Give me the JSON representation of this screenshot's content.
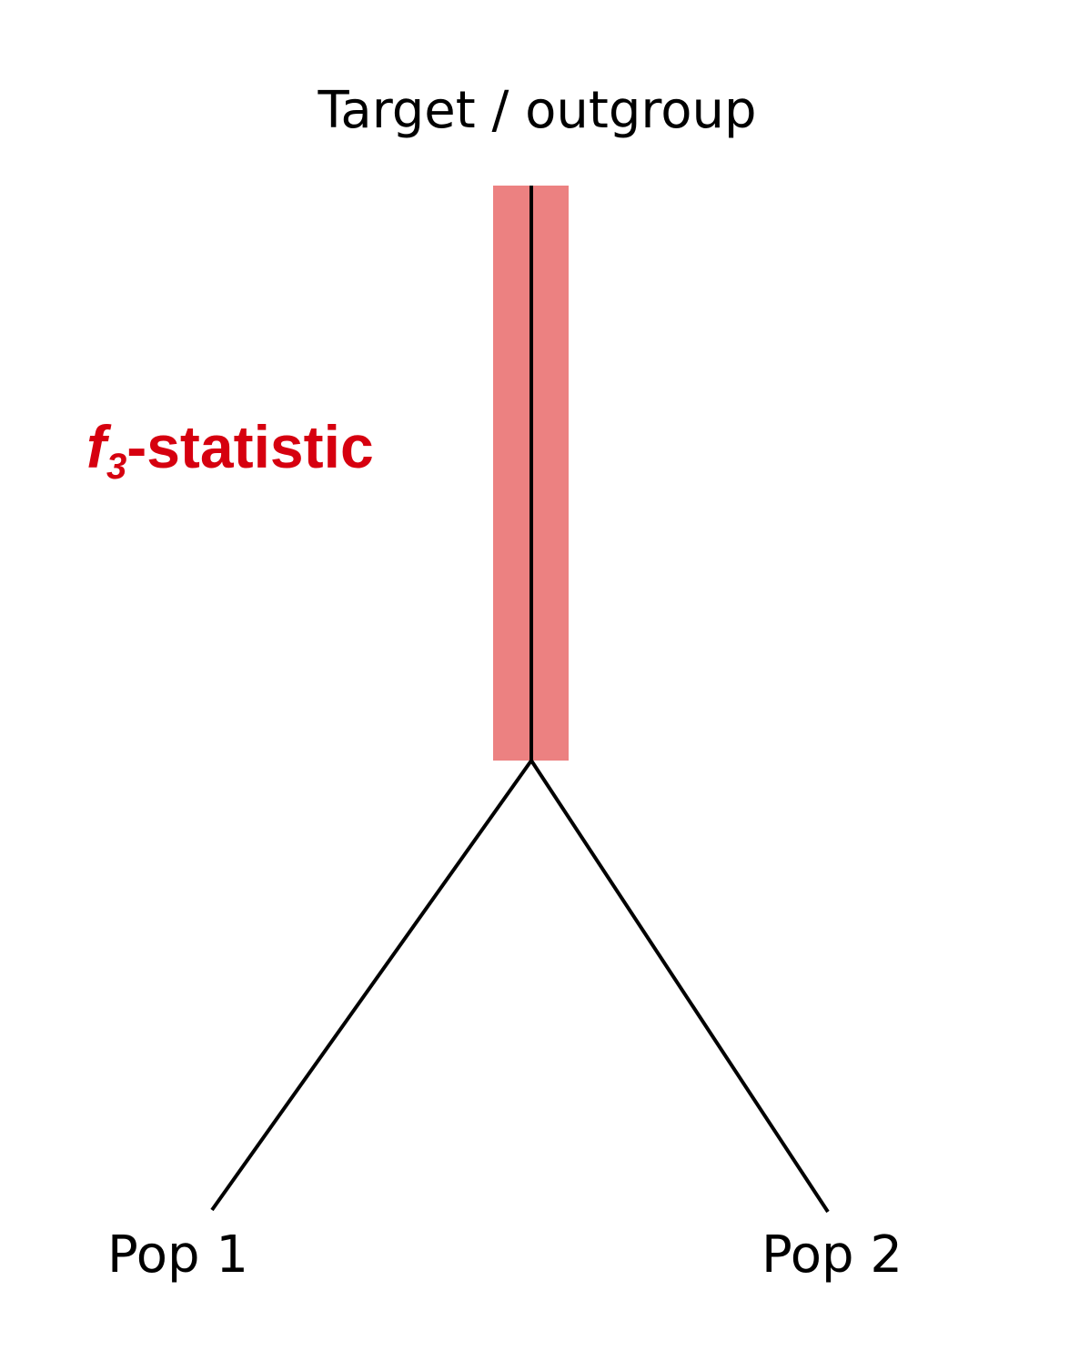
{
  "diagram": {
    "title": "Target / outgroup",
    "statistic": {
      "letter": "f",
      "subscript": "3",
      "suffix": "-statistic"
    },
    "leaves": [
      {
        "label": "Pop 1"
      },
      {
        "label": "Pop 2"
      }
    ]
  },
  "colors": {
    "highlight": "#ec8181",
    "statistic_text": "#d6000f",
    "branch": "#000000",
    "text": "#000000"
  }
}
